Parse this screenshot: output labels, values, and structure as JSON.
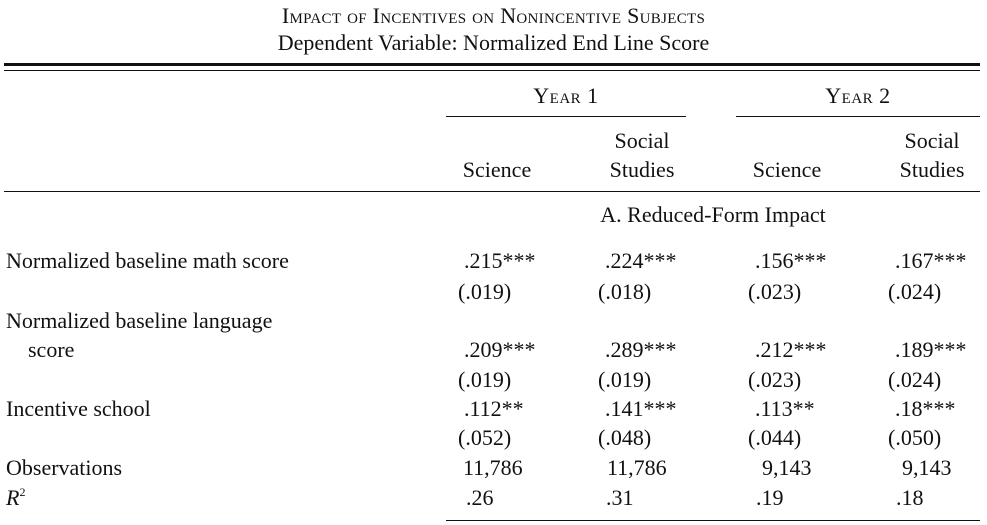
{
  "table": {
    "title": "Impact of Incentives on Nonincentive Subjects",
    "subtitle": "Dependent Variable: Normalized End Line Score",
    "groups": [
      {
        "label": "Year 1"
      },
      {
        "label": "Year 2"
      }
    ],
    "columns": [
      {
        "line1": "",
        "line2": "Science"
      },
      {
        "line1": "Social",
        "line2": "Studies"
      },
      {
        "line1": "",
        "line2": "Science"
      },
      {
        "line1": "Social",
        "line2": "Studies"
      }
    ],
    "panel_a_label": "A. Reduced-Form Impact",
    "rows": {
      "math": {
        "label": "Normalized baseline math score",
        "coef": [
          ".215***",
          ".224***",
          ".156***",
          ".167***"
        ],
        "se": [
          "(.019)",
          "(.018)",
          "(.023)",
          "(.024)"
        ]
      },
      "language": {
        "label_line1": "Normalized baseline language",
        "label_line2": "score",
        "coef": [
          ".209***",
          ".289***",
          ".212***",
          ".189***"
        ],
        "se": [
          "(.019)",
          "(.019)",
          "(.023)",
          "(.024)"
        ]
      },
      "incentive": {
        "label": "Incentive school",
        "coef": [
          ".112**",
          ".141***",
          ".113**",
          ".18***"
        ],
        "se": [
          "(.052)",
          "(.048)",
          "(.044)",
          "(.050)"
        ]
      },
      "observations": {
        "label": "Observations",
        "values": [
          "11,786",
          "11,786",
          "9,143",
          "9,143"
        ]
      },
      "r2": {
        "label_base": "R",
        "label_sup": "2",
        "values": [
          ".26",
          ".31",
          ".19",
          ".18"
        ]
      }
    }
  }
}
